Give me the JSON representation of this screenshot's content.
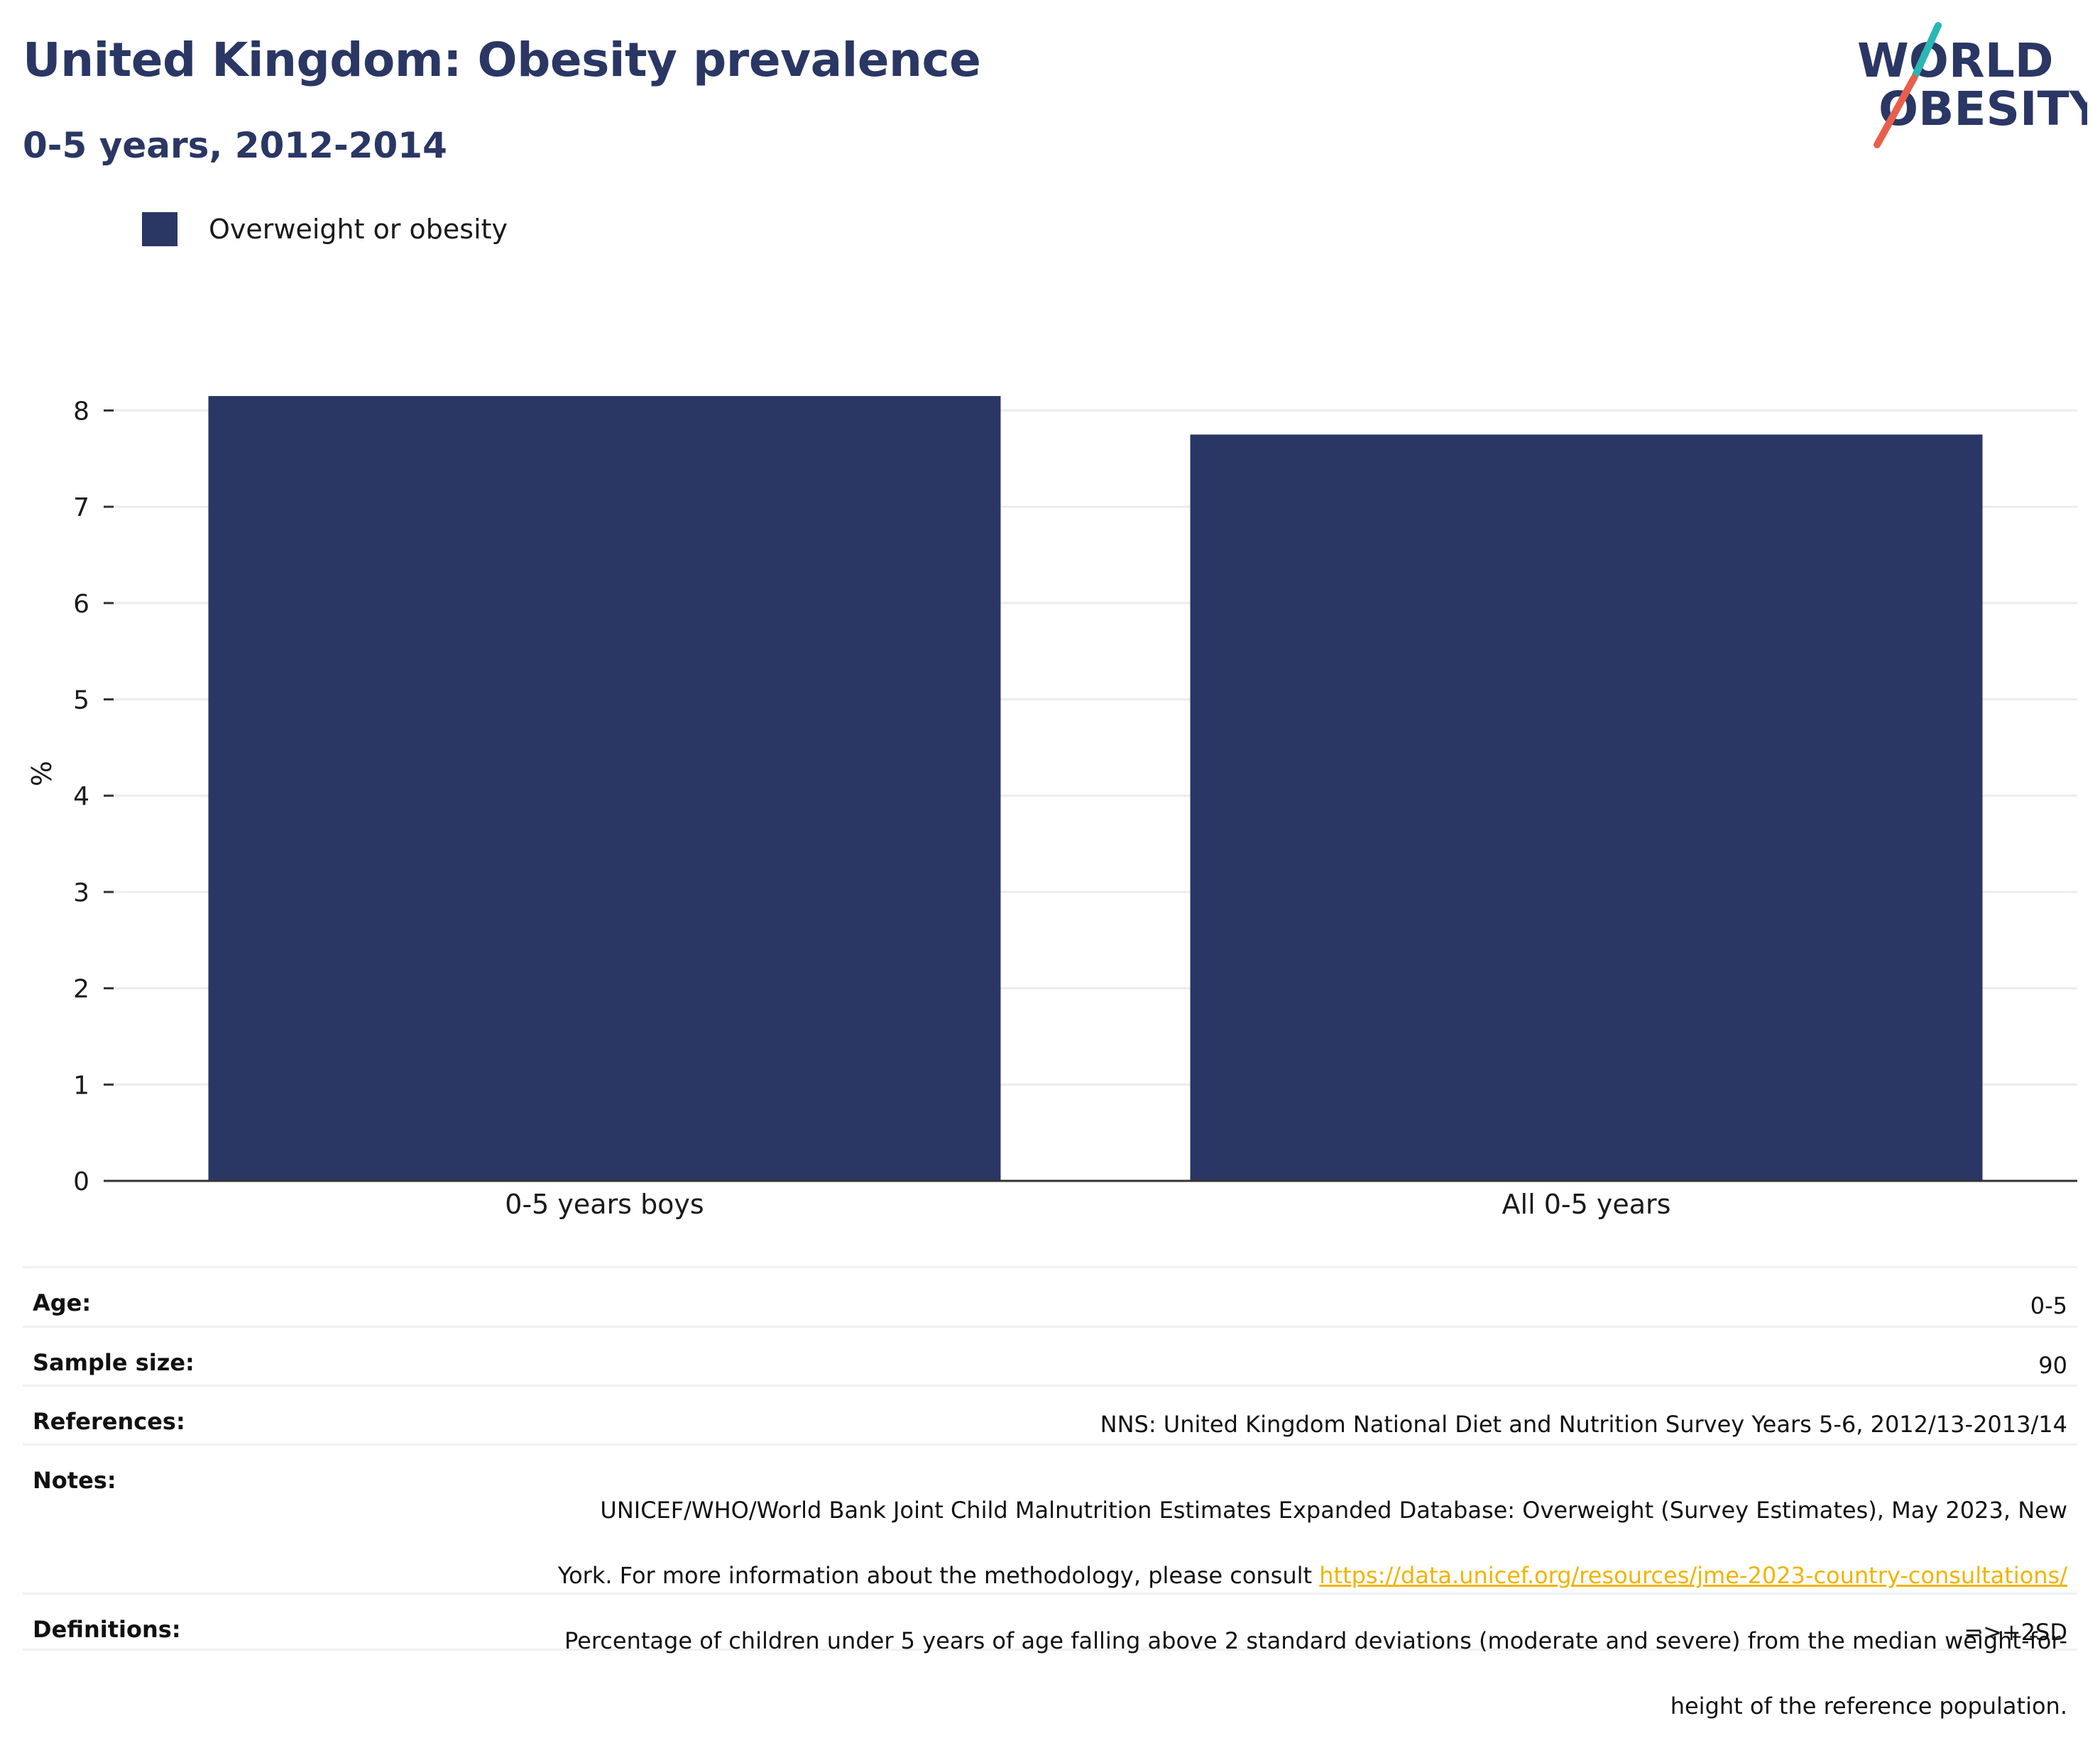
{
  "header": {
    "title": "United Kingdom: Obesity prevalence",
    "subtitle": "0-5 years, 2012-2014"
  },
  "logo": {
    "line1": "WORLD",
    "line2": "OBESITY",
    "colors": {
      "text": "#2a3764",
      "slash_top": "#2ab7b3",
      "slash_bottom": "#e8604c"
    }
  },
  "legend": {
    "items": [
      {
        "label": "Overweight or obesity",
        "color": "#2a3764"
      }
    ]
  },
  "chart_data": {
    "type": "bar",
    "categories": [
      "0-5 years boys",
      "All 0-5 years"
    ],
    "series": [
      {
        "name": "Overweight or obesity",
        "values": [
          8.15,
          7.75
        ],
        "color": "#2a3764"
      }
    ],
    "ylabel": "%",
    "xlabel": "",
    "ylim": [
      0,
      8.7
    ],
    "yticks": [
      0,
      1,
      2,
      3,
      4,
      5,
      6,
      7,
      8
    ],
    "grid": true,
    "legend_position": "top-left"
  },
  "meta": {
    "age_label": "Age:",
    "age_value": "0-5",
    "sample_label": "Sample size:",
    "sample_value": "90",
    "references_label": "References:",
    "references_value": "NNS: United Kingdom National Diet and Nutrition Survey Years 5-6, 2012/13-2013/14",
    "notes_label": "Notes:",
    "notes_line1": "UNICEF/WHO/World Bank Joint Child Malnutrition Estimates Expanded Database: Overweight (Survey Estimates), May 2023, New",
    "notes_line2_prefix": "York. For more information about the methodology, please consult ",
    "notes_link": "https://data.unicef.org/resources/jme-2023-country-consultations/",
    "notes_line3": "Percentage of children under 5 years of age falling above 2 standard deviations (moderate and severe) from the median weight-for-",
    "notes_line4": "height of the reference population.",
    "definitions_label": "Definitions:",
    "definitions_value": "=>+2SD"
  }
}
